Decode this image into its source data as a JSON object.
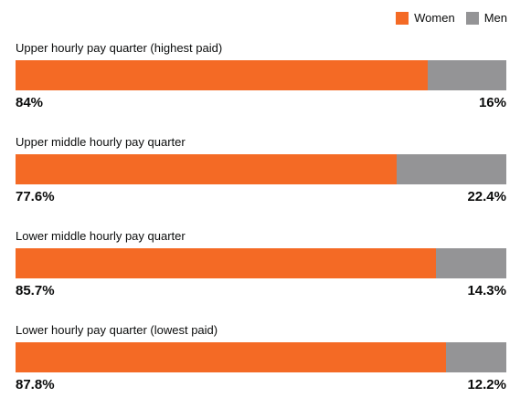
{
  "colors": {
    "women": "#f46a25",
    "men": "#949496"
  },
  "legend": {
    "women": "Women",
    "men": "Men"
  },
  "chart_data": {
    "type": "bar",
    "orientation": "horizontal-stacked-100",
    "categories": [
      "Upper hourly pay quarter (highest paid)",
      "Upper middle hourly pay quarter",
      "Lower middle hourly pay quarter",
      "Lower hourly pay quarter (lowest paid)"
    ],
    "series": [
      {
        "name": "Women",
        "values": [
          84,
          77.6,
          85.7,
          87.8
        ]
      },
      {
        "name": "Men",
        "values": [
          16,
          22.4,
          14.3,
          12.2
        ]
      }
    ],
    "value_labels": {
      "women": [
        "84%",
        "77.6%",
        "85.7%",
        "87.8%"
      ],
      "men": [
        "16%",
        "22.4%",
        "14.3%",
        "12.2%"
      ]
    },
    "xlim": [
      0,
      100
    ],
    "legend_position": "top-right",
    "grid": false
  }
}
